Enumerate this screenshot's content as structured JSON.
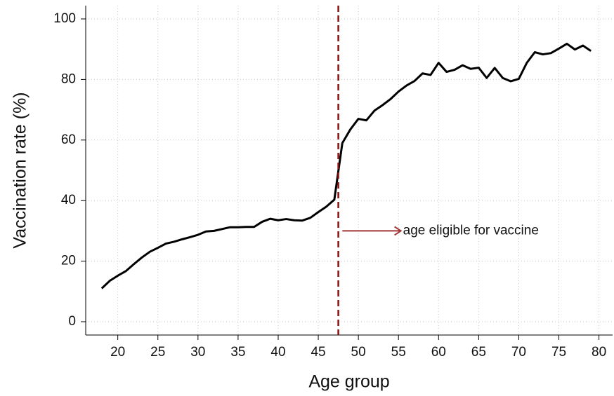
{
  "chart_data": {
    "type": "line",
    "x_label": "Age group",
    "y_label": "Vaccination rate (%)",
    "x": [
      18,
      19,
      20,
      21,
      22,
      23,
      24,
      25,
      26,
      27,
      28,
      29,
      30,
      31,
      32,
      33,
      34,
      35,
      36,
      37,
      38,
      39,
      40,
      41,
      42,
      43,
      44,
      45,
      46,
      47,
      48,
      49,
      50,
      51,
      52,
      53,
      54,
      55,
      56,
      57,
      58,
      59,
      60,
      61,
      62,
      63,
      64,
      65,
      66,
      67,
      68,
      69,
      70,
      71,
      72,
      73,
      74,
      75,
      76,
      77,
      78,
      79
    ],
    "series": [
      {
        "name": "Vaccination rate",
        "color": "#000000",
        "values": [
          11,
          13.5,
          15.2,
          16.7,
          19,
          21.2,
          23.1,
          24.4,
          25.8,
          26.4,
          27.2,
          27.9,
          28.7,
          29.8,
          30,
          30.6,
          31.2,
          31.2,
          31.3,
          31.3,
          33,
          34,
          33.5,
          33.9,
          33.5,
          33.4,
          34.3,
          36.2,
          38,
          40.3,
          59,
          63.5,
          67,
          66.5,
          69.7,
          71.5,
          73.5,
          76,
          78,
          79.5,
          82,
          81.5,
          85.5,
          82.5,
          83.2,
          84.7,
          83.5,
          83.9,
          80.5,
          83.8,
          80.5,
          79.4,
          80.2,
          85.5,
          89,
          88.3,
          88.7,
          90.2,
          91.8,
          89.9,
          91.2,
          89.4
        ]
      }
    ],
    "xlim": [
      16,
      81.7
    ],
    "ylim": [
      -4.4,
      104.4
    ],
    "xticks": [
      20,
      25,
      30,
      35,
      40,
      45,
      50,
      55,
      60,
      65,
      70,
      75,
      80
    ],
    "yticks": [
      0,
      20,
      40,
      60,
      80,
      100
    ],
    "grid": true,
    "vline": {
      "x": 47.5,
      "color": "#8b1010"
    },
    "annotation": {
      "text": "age eligible for vaccine",
      "x_start": 48,
      "x_end": 55.3,
      "y": 30,
      "color": "#a03535"
    }
  }
}
